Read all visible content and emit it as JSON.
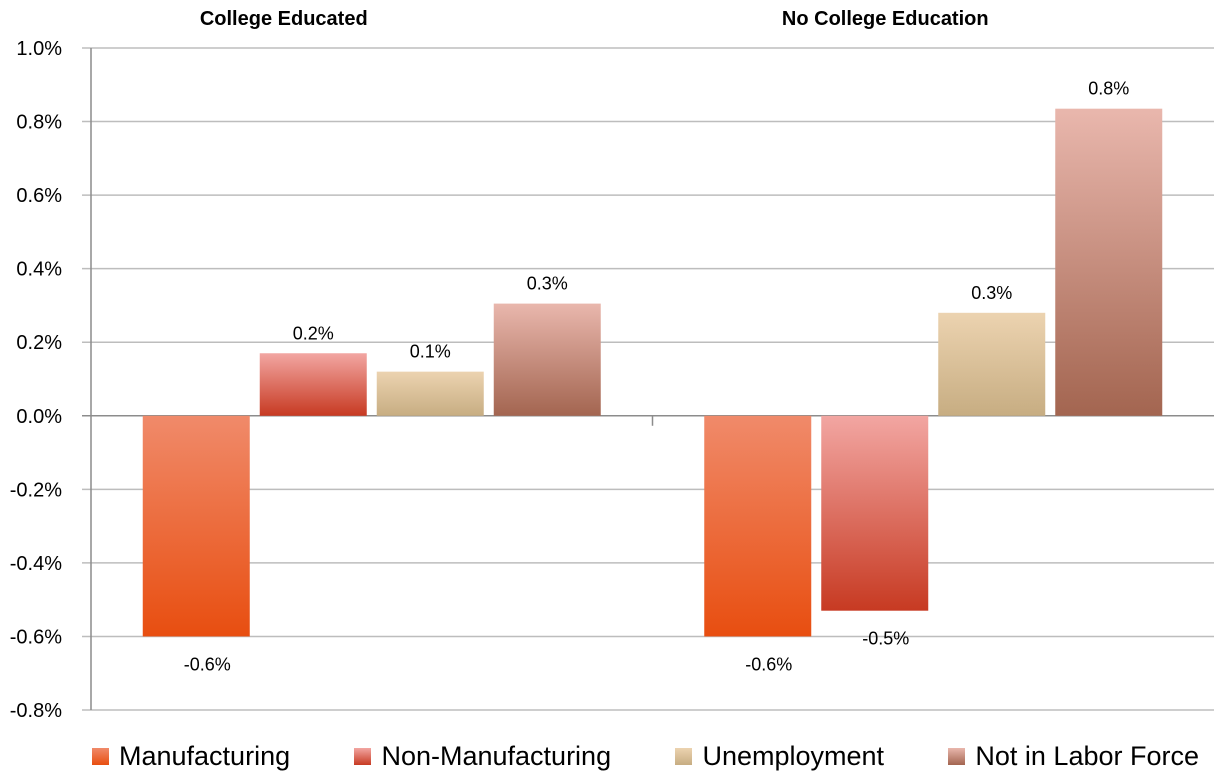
{
  "chart_data": {
    "type": "bar",
    "groups": [
      "College Educated",
      "No College Education"
    ],
    "series": [
      {
        "name": "Manufacturing",
        "values": [
          -0.6,
          -0.6
        ],
        "labels": [
          "-0.6%",
          "-0.6%"
        ],
        "color_top": "#f08a6a",
        "color_bottom": "#e84e10"
      },
      {
        "name": "Non-Manufacturing",
        "values": [
          0.17,
          -0.53
        ],
        "labels": [
          "0.2%",
          "-0.5%"
        ],
        "color_top": "#f2a6a2",
        "color_bottom": "#c73a22"
      },
      {
        "name": "Unemployment",
        "values": [
          0.12,
          0.28
        ],
        "labels": [
          "0.1%",
          "0.3%"
        ],
        "color_top": "#ecd3b0",
        "color_bottom": "#c7ad82"
      },
      {
        "name": "Not in Labor Force",
        "values": [
          0.305,
          0.835
        ],
        "labels": [
          "0.3%",
          "0.8%"
        ],
        "color_top": "#e9b7ad",
        "color_bottom": "#a36550"
      }
    ],
    "y_ticks": [
      "1.0%",
      "0.8%",
      "0.6%",
      "0.4%",
      "0.2%",
      "0.0%",
      "-0.2%",
      "-0.4%",
      "-0.6%",
      "-0.8%"
    ],
    "ylim": [
      -0.8,
      1.0
    ],
    "grid": true,
    "legend_position": "bottom"
  }
}
